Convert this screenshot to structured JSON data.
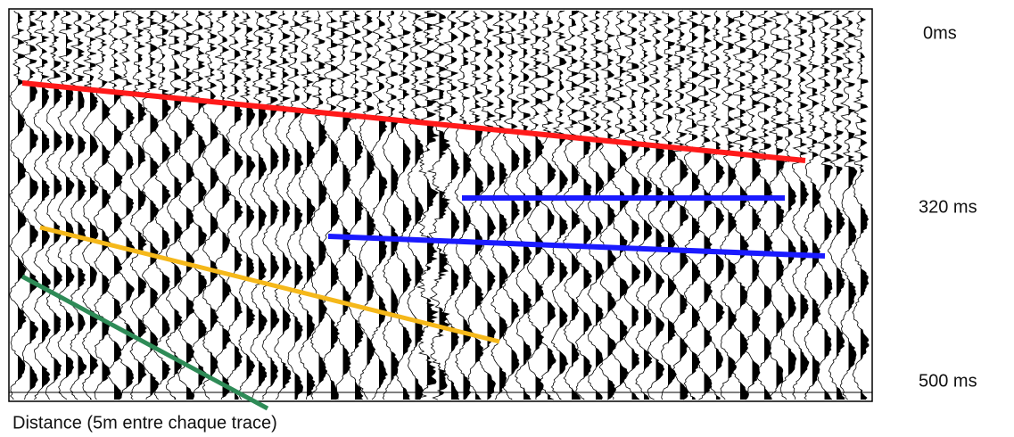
{
  "time_labels": [
    "0ms",
    "320 ms",
    "500 ms"
  ],
  "caption": "Distance (5m entre chaque trace)"
}
